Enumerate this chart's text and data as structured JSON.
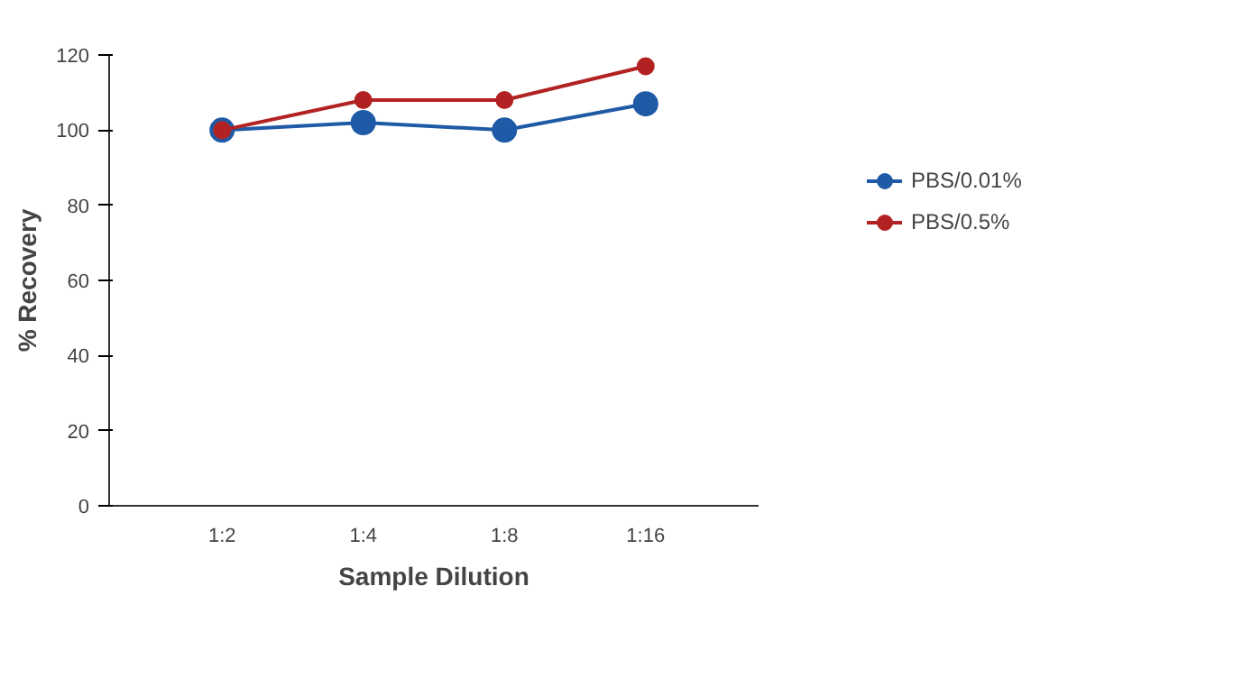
{
  "chart_data": {
    "type": "line",
    "xlabel": "Sample Dilution",
    "ylabel": "% Recovery",
    "categories": [
      "1:2",
      "1:4",
      "1:8",
      "1:16"
    ],
    "series": [
      {
        "name": "PBS/0.01%",
        "color": "#1f5aa6",
        "values": [
          100,
          102,
          100,
          107
        ]
      },
      {
        "name": "PBS/0.5%",
        "color": "#b22222",
        "values": [
          100,
          108,
          108,
          117
        ]
      }
    ],
    "ylim": [
      0,
      120
    ],
    "yticks": [
      0,
      20,
      40,
      60,
      80,
      100,
      120
    ],
    "grid": false,
    "legend": "right",
    "marker": "circle",
    "line_style": "solid"
  }
}
